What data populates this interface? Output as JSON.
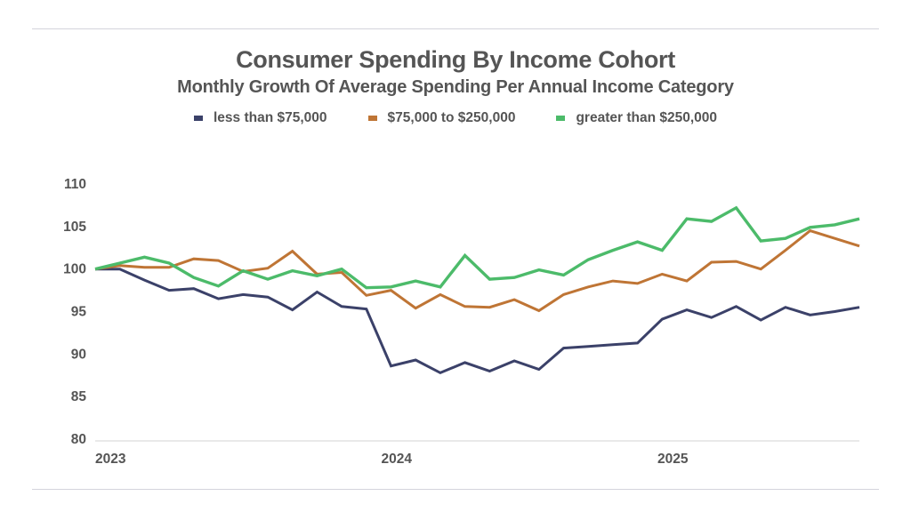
{
  "chart_data": {
    "type": "line",
    "title": "Consumer Spending By Income Cohort",
    "subtitle": "Monthly Growth Of Average Spending Per Annual Income Category",
    "xlabel": "",
    "ylabel": "",
    "ylim": [
      80,
      110
    ],
    "yticks": [
      80,
      85,
      90,
      95,
      100,
      105,
      110
    ],
    "xtick_labels": [
      {
        "label": "2023",
        "index": 0
      },
      {
        "label": "2024",
        "index": 12
      },
      {
        "label": "2025",
        "index": 24
      }
    ],
    "x": [
      "2023-01",
      "2023-02",
      "2023-03",
      "2023-04",
      "2023-05",
      "2023-06",
      "2023-07",
      "2023-08",
      "2023-09",
      "2023-10",
      "2023-11",
      "2023-12",
      "2024-01",
      "2024-02",
      "2024-03",
      "2024-04",
      "2024-05",
      "2024-06",
      "2024-07",
      "2024-08",
      "2024-09",
      "2024-10",
      "2024-11",
      "2024-12",
      "2025-01",
      "2025-02",
      "2025-03",
      "2025-04",
      "2025-05",
      "2025-06",
      "2025-07",
      "2025-08"
    ],
    "grid": false,
    "legend_position": "top-center",
    "series": [
      {
        "name": "less than $75,000",
        "color": "#3b4169",
        "values": [
          100,
          100,
          98.7,
          97.5,
          97.7,
          96.5,
          97.0,
          96.7,
          95.2,
          97.3,
          95.6,
          95.3,
          88.6,
          89.3,
          87.8,
          89.0,
          88.0,
          89.2,
          88.2,
          90.7,
          90.9,
          91.1,
          91.3,
          94.1,
          95.2,
          94.3,
          95.6,
          94.0,
          95.5,
          94.6,
          95.0,
          95.5
        ]
      },
      {
        "name": "$75,000 to $250,000",
        "color": "#bf7535",
        "values": [
          100,
          100.4,
          100.2,
          100.2,
          101.2,
          101.0,
          99.7,
          100.1,
          102.1,
          99.4,
          99.6,
          96.9,
          97.5,
          95.4,
          97.0,
          95.6,
          95.5,
          96.4,
          95.1,
          97.0,
          97.9,
          98.6,
          98.3,
          99.4,
          98.6,
          100.8,
          100.9,
          100.0,
          102.2,
          104.5,
          103.6,
          102.7
        ]
      },
      {
        "name": "greater than $250,000",
        "color": "#4cbb6a",
        "values": [
          100,
          100.7,
          101.4,
          100.7,
          99.0,
          98.0,
          99.8,
          98.8,
          99.8,
          99.2,
          100.0,
          97.8,
          97.9,
          98.6,
          97.9,
          101.6,
          98.8,
          99.0,
          99.9,
          99.3,
          101.1,
          102.2,
          103.2,
          102.2,
          105.9,
          105.6,
          107.2,
          103.3,
          103.6,
          104.9,
          105.2,
          105.9
        ]
      }
    ]
  }
}
